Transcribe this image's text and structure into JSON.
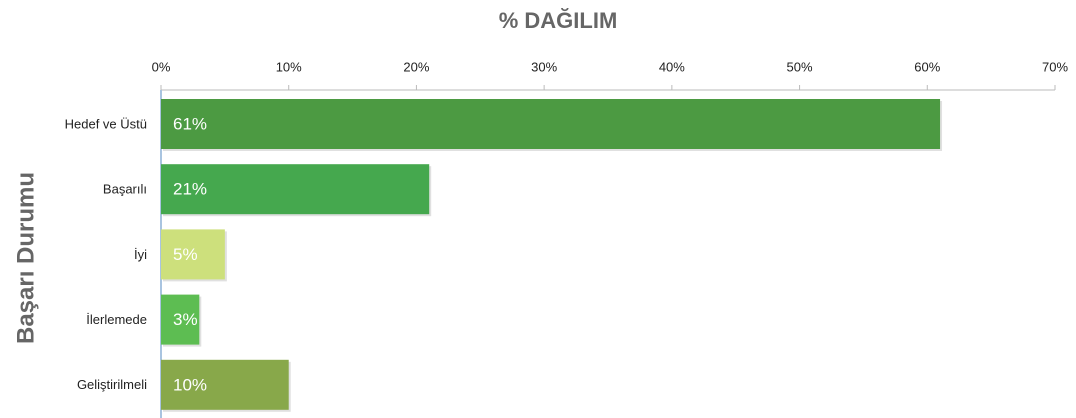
{
  "chart_data": {
    "type": "bar",
    "orientation": "horizontal",
    "title": "% DAĞILIM",
    "y_label": "Başarı Durumu",
    "categories": [
      "Hedef ve Üstü",
      "Başarılı",
      "İyi",
      "İlerlemede",
      "Geliştirilmeli"
    ],
    "values": [
      61,
      21,
      5,
      3,
      10
    ],
    "value_labels": [
      "61%",
      "21%",
      "5%",
      "3%",
      "10%"
    ],
    "colors": [
      "#4c9a42",
      "#45a84e",
      "#cde07c",
      "#5dbd52",
      "#88a84a"
    ],
    "xlim": [
      0,
      70
    ],
    "xticks": [
      {
        "value": 0,
        "label": "0%"
      },
      {
        "value": 10,
        "label": "10%"
      },
      {
        "value": 20,
        "label": "20%"
      },
      {
        "value": 30,
        "label": "30%"
      },
      {
        "value": 40,
        "label": "40%"
      },
      {
        "value": 50,
        "label": "50%"
      },
      {
        "value": 60,
        "label": "60%"
      },
      {
        "value": 70,
        "label": "70%"
      }
    ],
    "grid": false
  }
}
